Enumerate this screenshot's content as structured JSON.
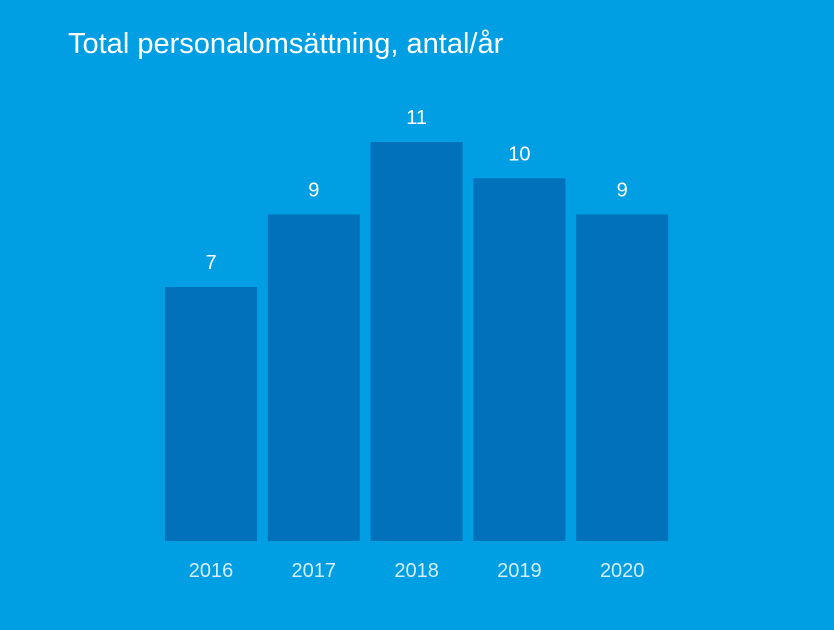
{
  "colors": {
    "background": "#009FE3",
    "bar": "#0071BA",
    "text": "#FFFFFF",
    "tick_text": "#D6EEFA"
  },
  "chart_data": {
    "type": "bar",
    "title": "Total personalomsättning, antal/år",
    "xlabel": "",
    "ylabel": "",
    "categories": [
      "2016",
      "2017",
      "2018",
      "2019",
      "2020"
    ],
    "values": [
      7,
      9,
      11,
      10,
      9
    ],
    "data_labels": [
      "7",
      "9",
      "11",
      "10",
      "9"
    ],
    "ylim": [
      0,
      11
    ],
    "grid": false,
    "legend": "none"
  }
}
